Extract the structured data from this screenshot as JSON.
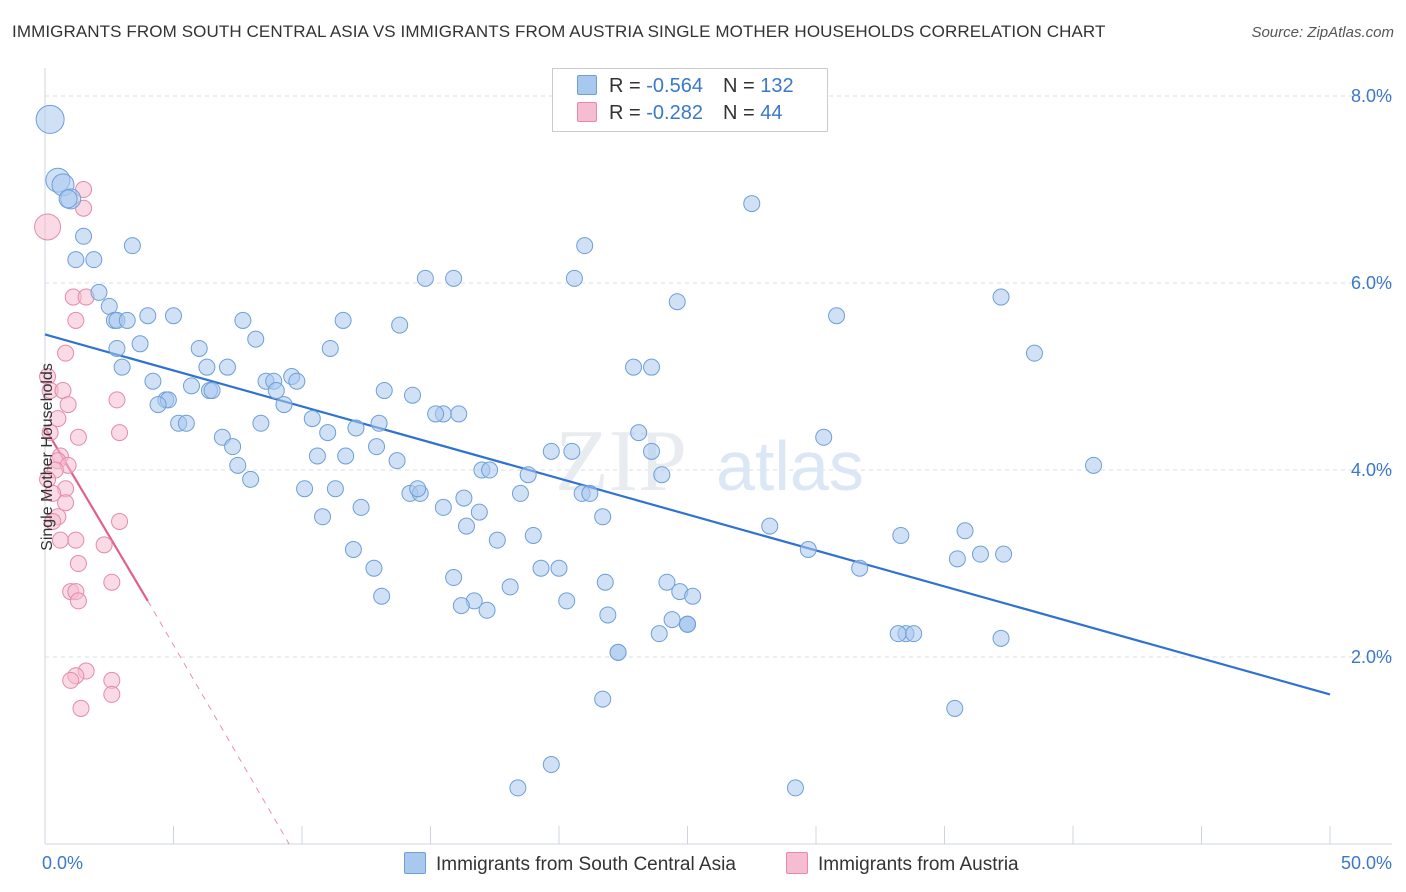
{
  "title": "IMMIGRANTS FROM SOUTH CENTRAL ASIA VS IMMIGRANTS FROM AUSTRIA SINGLE MOTHER HOUSEHOLDS CORRELATION CHART",
  "source": "Source: ZipAtlas.com",
  "watermark": {
    "zip": "ZIP",
    "atlas": "atlas"
  },
  "legend": {
    "rows": [
      {
        "r_label": "R =",
        "r_value": "-0.564",
        "n_label": "N =",
        "n_value": "132"
      },
      {
        "r_label": "R =",
        "r_value": "-0.282",
        "n_label": "N =",
        "n_value": "44"
      }
    ]
  },
  "colors": {
    "blue_fill": "#a9c8ee",
    "blue_stroke": "#6e9fd8",
    "blue_line": "#2f72d0",
    "pink_fill": "#f6bcd0",
    "pink_stroke": "#e58aa8",
    "pink_line": "#e0608c",
    "grid": "#d8dde6",
    "axis_text": "#3a78c9"
  },
  "chart_data": {
    "type": "scatter",
    "title": "IMMIGRANTS FROM SOUTH CENTRAL ASIA VS IMMIGRANTS FROM AUSTRIA SINGLE MOTHER HOUSEHOLDS CORRELATION CHART",
    "xlabel": "",
    "ylabel": "Single Mother Households",
    "xlim": [
      0,
      50
    ],
    "ylim": [
      0,
      8.3
    ],
    "x_tick_labels": [
      "0.0%",
      "50.0%"
    ],
    "y_ticks": [
      2,
      4,
      6,
      8
    ],
    "y_tick_labels": [
      "2.0%",
      "4.0%",
      "6.0%",
      "8.0%"
    ],
    "grid": "horizontal dashed",
    "legend_position": "top-center",
    "series": [
      {
        "name": "Immigrants from South Central Asia",
        "color": "#a9c8ee",
        "r": -0.564,
        "n": 132,
        "trend": {
          "x": [
            0,
            50
          ],
          "y": [
            5.45,
            1.6
          ]
        },
        "points": [
          [
            0.2,
            7.75
          ],
          [
            0.5,
            7.1
          ],
          [
            0.7,
            7.05
          ],
          [
            1.0,
            6.9
          ],
          [
            0.9,
            6.9
          ],
          [
            1.5,
            6.5
          ],
          [
            1.2,
            6.25
          ],
          [
            1.9,
            6.25
          ],
          [
            3.4,
            6.4
          ],
          [
            2.1,
            5.9
          ],
          [
            2.5,
            5.75
          ],
          [
            2.7,
            5.6
          ],
          [
            2.8,
            5.6
          ],
          [
            3.2,
            5.6
          ],
          [
            4.0,
            5.65
          ],
          [
            5.0,
            5.65
          ],
          [
            7.7,
            5.6
          ],
          [
            8.2,
            5.4
          ],
          [
            3.7,
            5.35
          ],
          [
            2.8,
            5.3
          ],
          [
            6.0,
            5.3
          ],
          [
            3.0,
            5.1
          ],
          [
            6.3,
            5.1
          ],
          [
            7.1,
            5.1
          ],
          [
            4.2,
            4.95
          ],
          [
            5.7,
            4.9
          ],
          [
            6.4,
            4.85
          ],
          [
            6.5,
            4.85
          ],
          [
            8.6,
            4.95
          ],
          [
            8.9,
            4.95
          ],
          [
            9.6,
            5.0
          ],
          [
            9.8,
            4.95
          ],
          [
            9.0,
            4.85
          ],
          [
            9.3,
            4.7
          ],
          [
            4.7,
            4.75
          ],
          [
            4.8,
            4.75
          ],
          [
            4.4,
            4.7
          ],
          [
            5.2,
            4.5
          ],
          [
            5.5,
            4.5
          ],
          [
            8.4,
            4.5
          ],
          [
            10.4,
            4.55
          ],
          [
            6.9,
            4.35
          ],
          [
            7.3,
            4.25
          ],
          [
            7.5,
            4.05
          ],
          [
            8.0,
            3.9
          ],
          [
            10.6,
            4.15
          ],
          [
            11.0,
            4.4
          ],
          [
            12.1,
            4.45
          ],
          [
            13.0,
            4.5
          ],
          [
            11.7,
            4.15
          ],
          [
            12.9,
            4.25
          ],
          [
            13.7,
            4.1
          ],
          [
            15.5,
            4.6
          ],
          [
            16.1,
            4.6
          ],
          [
            13.2,
            4.85
          ],
          [
            14.3,
            4.8
          ],
          [
            15.2,
            4.6
          ],
          [
            11.1,
            5.3
          ],
          [
            11.6,
            5.6
          ],
          [
            13.8,
            5.55
          ],
          [
            14.8,
            6.05
          ],
          [
            15.9,
            6.05
          ],
          [
            10.1,
            3.8
          ],
          [
            10.8,
            3.5
          ],
          [
            11.3,
            3.8
          ],
          [
            12.3,
            3.6
          ],
          [
            12.0,
            3.15
          ],
          [
            12.8,
            2.95
          ],
          [
            13.1,
            2.65
          ],
          [
            14.2,
            3.75
          ],
          [
            14.6,
            3.75
          ],
          [
            14.5,
            3.8
          ],
          [
            15.5,
            3.6
          ],
          [
            16.3,
            3.7
          ],
          [
            16.4,
            3.4
          ],
          [
            16.9,
            3.55
          ],
          [
            17.6,
            3.25
          ],
          [
            17.2,
            2.5
          ],
          [
            16.7,
            2.6
          ],
          [
            15.9,
            2.85
          ],
          [
            16.2,
            2.55
          ],
          [
            17.0,
            4.0
          ],
          [
            17.3,
            4.0
          ],
          [
            18.5,
            3.75
          ],
          [
            18.8,
            3.95
          ],
          [
            19.0,
            3.3
          ],
          [
            19.3,
            2.95
          ],
          [
            20.0,
            2.95
          ],
          [
            18.1,
            2.75
          ],
          [
            20.3,
            2.6
          ],
          [
            19.7,
            4.2
          ],
          [
            20.5,
            4.2
          ],
          [
            20.6,
            6.05
          ],
          [
            20.9,
            3.75
          ],
          [
            21.2,
            3.75
          ],
          [
            21.7,
            3.5
          ],
          [
            21.0,
            6.4
          ],
          [
            21.8,
            2.8
          ],
          [
            22.9,
            5.1
          ],
          [
            23.6,
            4.2
          ],
          [
            23.1,
            4.4
          ],
          [
            24.0,
            3.95
          ],
          [
            24.2,
            2.8
          ],
          [
            24.7,
            2.7
          ],
          [
            25.2,
            2.65
          ],
          [
            24.6,
            5.8
          ],
          [
            23.9,
            2.25
          ],
          [
            24.4,
            2.4
          ],
          [
            25.0,
            2.35
          ],
          [
            22.3,
            2.05
          ],
          [
            22.3,
            2.05
          ],
          [
            21.9,
            2.45
          ],
          [
            23.6,
            5.1
          ],
          [
            25.0,
            2.35
          ],
          [
            25.0,
            2.35
          ],
          [
            27.5,
            6.85
          ],
          [
            28.2,
            3.4
          ],
          [
            29.7,
            3.15
          ],
          [
            30.3,
            4.35
          ],
          [
            30.8,
            5.65
          ],
          [
            31.7,
            2.95
          ],
          [
            33.3,
            3.3
          ],
          [
            33.5,
            2.25
          ],
          [
            33.2,
            2.25
          ],
          [
            33.8,
            2.25
          ],
          [
            35.5,
            3.05
          ],
          [
            35.8,
            3.35
          ],
          [
            36.4,
            3.1
          ],
          [
            37.3,
            3.1
          ],
          [
            37.2,
            2.2
          ],
          [
            37.2,
            5.85
          ],
          [
            38.5,
            5.25
          ],
          [
            40.8,
            4.05
          ],
          [
            35.4,
            1.45
          ],
          [
            21.7,
            1.55
          ],
          [
            19.7,
            0.85
          ],
          [
            18.4,
            0.6
          ],
          [
            29.2,
            0.6
          ]
        ],
        "sizes": "first few points large (~13-16px radius), rest ~8px"
      },
      {
        "name": "Immigrants from Austria",
        "color": "#f6bcd0",
        "r": -0.282,
        "n": 44,
        "trend_solid": {
          "x": [
            0,
            4.0
          ],
          "y": [
            4.45,
            2.6
          ]
        },
        "trend_dashed": {
          "x": [
            4.0,
            9.5
          ],
          "y": [
            2.6,
            0.0
          ]
        },
        "points": [
          [
            0.1,
            6.6
          ],
          [
            1.5,
            7.0
          ],
          [
            1.5,
            6.8
          ],
          [
            1.1,
            5.85
          ],
          [
            1.6,
            5.85
          ],
          [
            1.2,
            5.6
          ],
          [
            0.1,
            5.0
          ],
          [
            0.2,
            4.85
          ],
          [
            0.8,
            5.25
          ],
          [
            0.7,
            4.85
          ],
          [
            0.9,
            4.7
          ],
          [
            0.5,
            4.55
          ],
          [
            0.2,
            4.4
          ],
          [
            1.3,
            4.35
          ],
          [
            0.6,
            4.15
          ],
          [
            0.5,
            4.1
          ],
          [
            0.9,
            4.05
          ],
          [
            0.4,
            4.0
          ],
          [
            0.1,
            3.9
          ],
          [
            0.8,
            3.8
          ],
          [
            0.3,
            3.75
          ],
          [
            0.8,
            3.65
          ],
          [
            0.5,
            3.5
          ],
          [
            0.3,
            3.45
          ],
          [
            2.8,
            4.75
          ],
          [
            2.9,
            4.4
          ],
          [
            2.9,
            3.45
          ],
          [
            0.6,
            3.25
          ],
          [
            1.2,
            3.25
          ],
          [
            1.3,
            3.0
          ],
          [
            2.3,
            3.2
          ],
          [
            2.6,
            2.8
          ],
          [
            1.0,
            2.7
          ],
          [
            1.2,
            2.7
          ],
          [
            1.3,
            2.6
          ],
          [
            1.6,
            1.85
          ],
          [
            1.2,
            1.8
          ],
          [
            1.0,
            1.75
          ],
          [
            2.6,
            1.75
          ],
          [
            2.6,
            1.6
          ],
          [
            1.4,
            1.45
          ]
        ]
      }
    ]
  },
  "bottom_legend": {
    "items": [
      "Immigrants from South Central Asia",
      "Immigrants from Austria"
    ]
  }
}
